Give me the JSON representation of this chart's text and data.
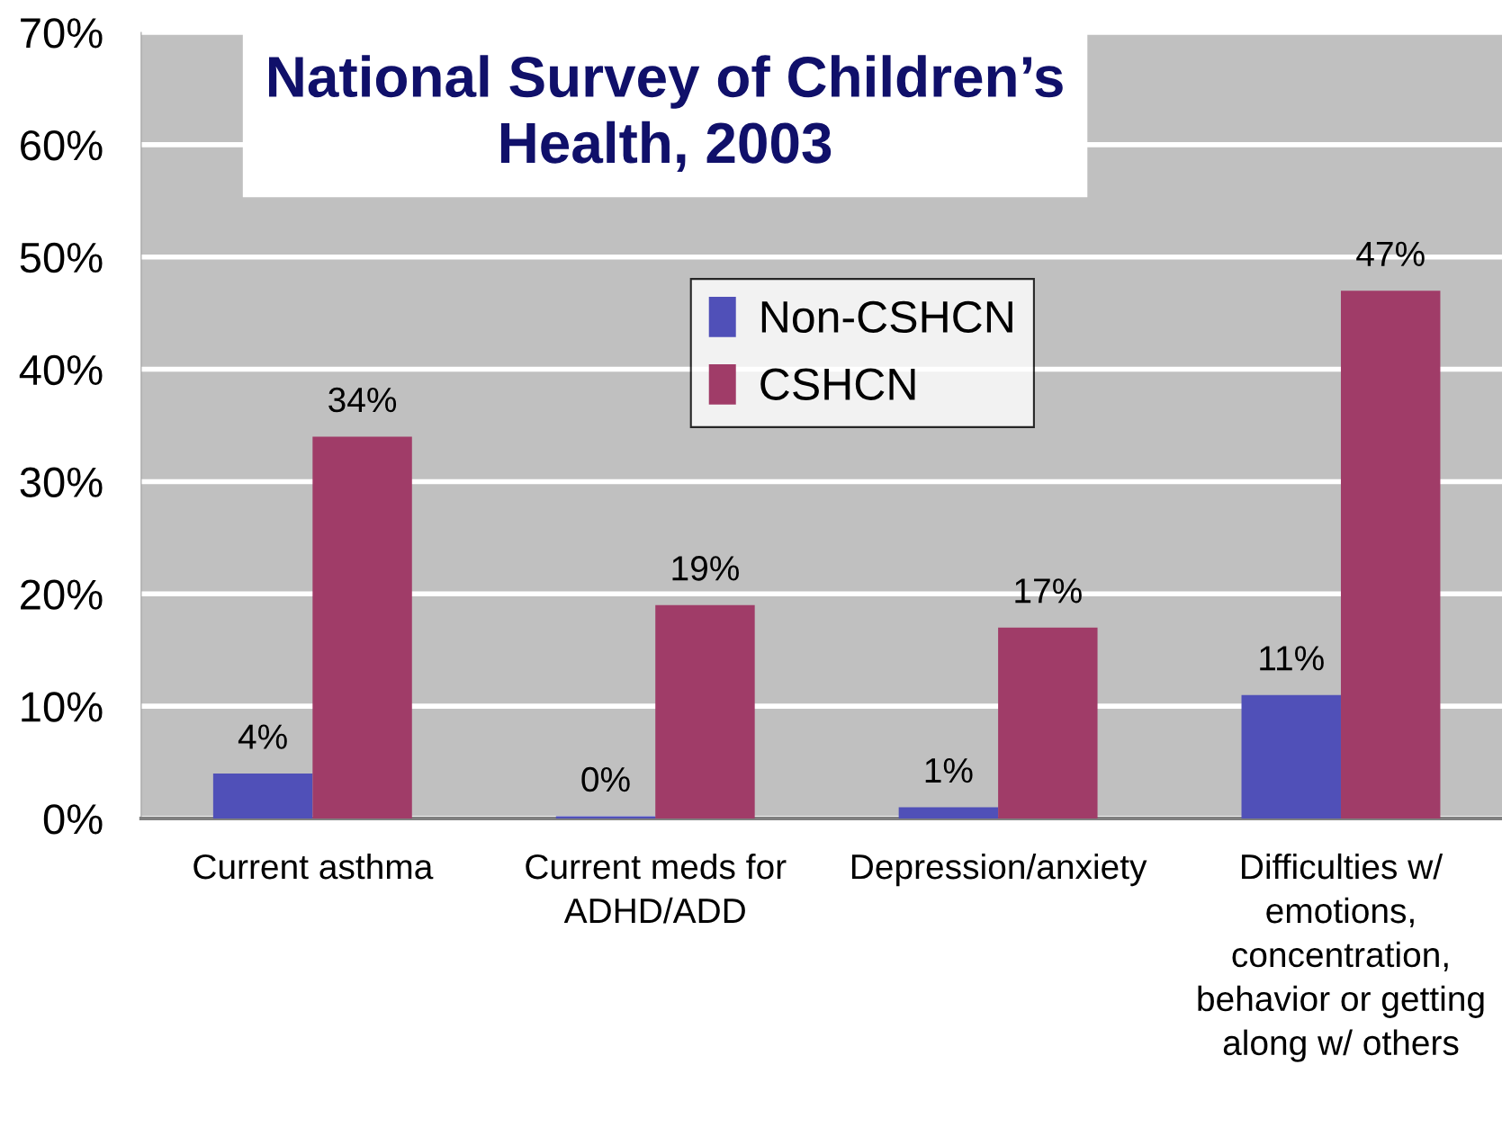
{
  "chart_data": {
    "type": "bar",
    "title": "National Survey of Children’s\nHealth, 2003",
    "categories": [
      "Current asthma",
      "Current meds for\nADHD/ADD",
      "Depression/anxiety",
      "Difficulties w/\nemotions,\nconcentration,\nbehavior or getting\nalong w/ others"
    ],
    "series": [
      {
        "name": "Non-CSHCN",
        "color": "#5050b8",
        "values": [
          4,
          0.2,
          1,
          11
        ],
        "value_labels": [
          "4%",
          "0%",
          "1%",
          "11%"
        ]
      },
      {
        "name": "CSHCN",
        "color": "#a03c68",
        "values": [
          34,
          19,
          17,
          47
        ],
        "value_labels": [
          "34%",
          "19%",
          "17%",
          "47%"
        ]
      }
    ],
    "ylim": [
      0,
      70
    ],
    "yticks": [
      {
        "value": 0,
        "label": "0%"
      },
      {
        "value": 10,
        "label": "10%"
      },
      {
        "value": 20,
        "label": "20%"
      },
      {
        "value": 30,
        "label": "30%"
      },
      {
        "value": 40,
        "label": "40%"
      },
      {
        "value": 50,
        "label": "50%"
      },
      {
        "value": 60,
        "label": "60%"
      },
      {
        "value": 70,
        "label": "70%"
      }
    ],
    "grid": "y",
    "legend": "top"
  }
}
